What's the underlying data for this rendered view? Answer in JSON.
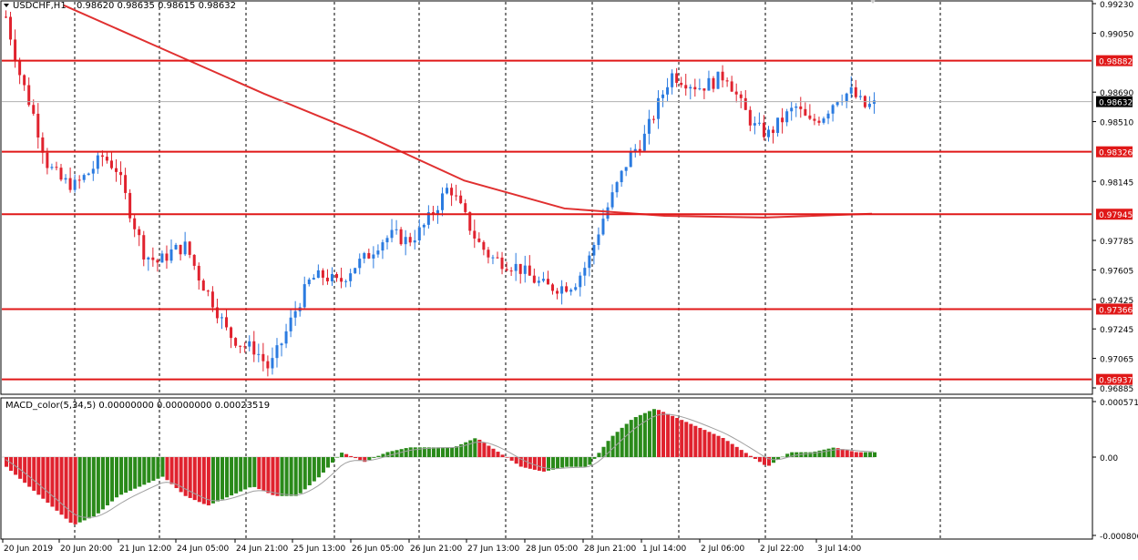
{
  "header": {
    "symbol": "USDCHF,H1",
    "ohlc": "0.98620 0.98635 0.98615 0.98632"
  },
  "macd_header": "MACD_color(5,34,5) 0.00000000 0.00000000 0.00023519",
  "colors": {
    "up": "#2b7be0",
    "down": "#e0222e",
    "ma": "#e03030",
    "hline": "#e01818",
    "hist_up": "#2a8a1a",
    "hist_down": "#e0222e",
    "signal": "#a0a0a0",
    "grid": "#000000",
    "current_price_label": "#000000"
  },
  "chart_data": [
    {
      "type": "candlestick",
      "symbol": "USDCHF",
      "timeframe": "H1",
      "ylim": [
        0.96885,
        0.9923
      ],
      "y_ticks": [
        "0.99230",
        "0.99050",
        "0.98690",
        "0.98510",
        "0.98145",
        "0.97785",
        "0.97605",
        "0.97425",
        "0.97245",
        "0.97065",
        "0.96885"
      ],
      "x_ticks": [
        "20 Jun 2019",
        "20 Jun 20:00",
        "21 Jun 12:00",
        "24 Jun 05:00",
        "24 Jun 21:00",
        "25 Jun 13:00",
        "26 Jun 05:00",
        "26 Jun 21:00",
        "27 Jun 13:00",
        "28 Jun 05:00",
        "28 Jun 21:00",
        "1 Jul 14:00",
        "2 Jul 06:00",
        "2 Jul 22:00",
        "3 Jul 14:00"
      ],
      "horizontal_levels": [
        {
          "label": "0.98882",
          "value": 0.98882
        },
        {
          "label": "0.98326",
          "value": 0.98326
        },
        {
          "label": "0.97945",
          "value": 0.97945
        },
        {
          "label": "0.97366",
          "value": 0.97366
        },
        {
          "label": "0.96937",
          "value": 0.96937
        }
      ],
      "current_price": {
        "label": "0.98632",
        "value": 0.98632
      },
      "close_path": [
        [
          0,
          0.9915
        ],
        [
          10,
          0.988
        ],
        [
          20,
          0.9855
        ],
        [
          30,
          0.9825
        ],
        [
          40,
          0.9815
        ],
        [
          50,
          0.9812
        ],
        [
          60,
          0.982
        ],
        [
          70,
          0.983
        ],
        [
          80,
          0.9822
        ],
        [
          90,
          0.9795
        ],
        [
          100,
          0.977
        ],
        [
          110,
          0.9765
        ],
        [
          120,
          0.9772
        ],
        [
          130,
          0.9775
        ],
        [
          140,
          0.9755
        ],
        [
          150,
          0.974
        ],
        [
          160,
          0.9722
        ],
        [
          170,
          0.9715
        ],
        [
          180,
          0.9712
        ],
        [
          190,
          0.97
        ],
        [
          200,
          0.9718
        ],
        [
          210,
          0.9738
        ],
        [
          220,
          0.9755
        ],
        [
          230,
          0.9757
        ],
        [
          240,
          0.9752
        ],
        [
          250,
          0.9762
        ],
        [
          260,
          0.9768
        ],
        [
          270,
          0.9778
        ],
        [
          280,
          0.9782
        ],
        [
          290,
          0.9778
        ],
        [
          300,
          0.9785
        ],
        [
          310,
          0.9798
        ],
        [
          320,
          0.9812
        ],
        [
          330,
          0.9795
        ],
        [
          340,
          0.9778
        ],
        [
          350,
          0.9768
        ],
        [
          360,
          0.9765
        ],
        [
          370,
          0.9762
        ],
        [
          380,
          0.9755
        ],
        [
          390,
          0.975
        ],
        [
          400,
          0.975
        ],
        [
          410,
          0.9752
        ],
        [
          420,
          0.9765
        ],
        [
          430,
          0.979
        ],
        [
          440,
          0.981
        ],
        [
          450,
          0.983
        ],
        [
          460,
          0.984
        ],
        [
          470,
          0.986
        ],
        [
          480,
          0.988
        ],
        [
          490,
          0.9876
        ],
        [
          500,
          0.9872
        ],
        [
          510,
          0.9875
        ],
        [
          520,
          0.988
        ],
        [
          530,
          0.9862
        ],
        [
          540,
          0.9848
        ],
        [
          550,
          0.9843
        ],
        [
          560,
          0.9852
        ],
        [
          570,
          0.986
        ],
        [
          580,
          0.985
        ],
        [
          590,
          0.9855
        ],
        [
          600,
          0.9866
        ],
        [
          610,
          0.9869
        ],
        [
          620,
          0.986
        ],
        [
          630,
          0.9862
        ]
      ],
      "ma_path": [
        [
          150,
          0.9922
        ],
        [
          250,
          0.9895
        ],
        [
          350,
          0.9868
        ],
        [
          450,
          0.9843
        ],
        [
          550,
          0.9815
        ],
        [
          650,
          0.9798
        ],
        [
          750,
          0.97935
        ],
        [
          850,
          0.97925
        ],
        [
          957,
          0.97948
        ]
      ]
    },
    {
      "type": "histogram",
      "name": "MACD_color(5,34,5)",
      "ylim": [
        -0.000806,
        0.0005716
      ],
      "y_ticks": [
        "0.0005716",
        "0.00",
        "-0.0008060"
      ],
      "series": [
        {
          "name": "histogram",
          "values": [
            -0.0001,
            -0.0003,
            -0.0005,
            -0.0007,
            -0.0006,
            -0.0004,
            -0.0003,
            -0.0002,
            -0.0004,
            -0.0005,
            -0.0004,
            -0.0003,
            -0.0004,
            -0.0004,
            -0.0002,
            5e-05,
            -5e-05,
            5e-05,
            0.0001,
            0.0001,
            0.0001,
            0.0002,
            5e-05,
            -0.0001,
            -0.00015,
            -0.0001,
            -0.0001,
            0.0002,
            0.0004,
            0.0005,
            0.0004,
            0.0003,
            0.0002,
            5e-05,
            -0.0001,
            5e-05,
            5e-05,
            0.0001,
            5e-05,
            5e-05
          ]
        }
      ]
    }
  ]
}
